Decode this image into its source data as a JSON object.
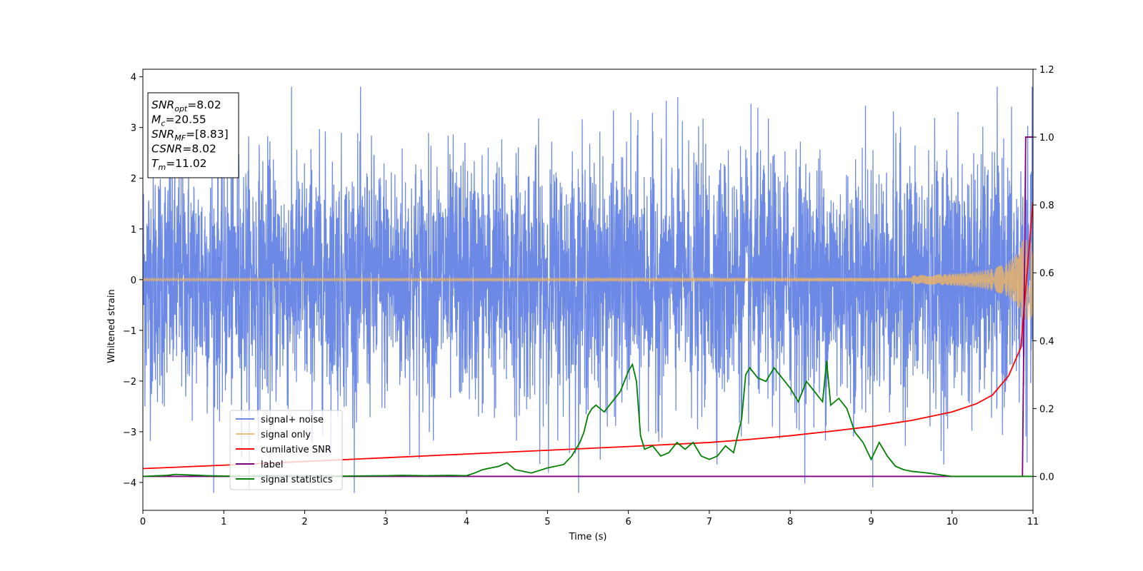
{
  "chart_data": {
    "type": "line",
    "xlabel": "Time (s)",
    "ylabel": "Whitened strain",
    "xlim": [
      0,
      11
    ],
    "ylim_left": [
      -4.55,
      4.15
    ],
    "ylim_right": [
      -0.1,
      1.2
    ],
    "x_ticks": [
      "0",
      "1",
      "2",
      "3",
      "4",
      "5",
      "6",
      "7",
      "8",
      "9",
      "10",
      "11"
    ],
    "y_ticks_left": [
      "−4",
      "−3",
      "−2",
      "−1",
      "0",
      "1",
      "2",
      "3",
      "4"
    ],
    "y_ticks_right": [
      "0.0",
      "0.2",
      "0.4",
      "0.6",
      "0.8",
      "1.0",
      "1.2"
    ],
    "series": [
      {
        "name": "signal+ noise",
        "axis": "left",
        "color": "#6d89e6",
        "description": "whitened strain noise, approx ±2.2 typical, peaks to ±3.8",
        "amplitude_typical": 2.2
      },
      {
        "name": "signal only",
        "axis": "left",
        "color": "#e8b36a",
        "description": "chirp waveform near 0, growing amplitude towards merger",
        "amplitude_end": 0.8
      },
      {
        "name": "cumilative SNR",
        "axis": "right",
        "color": "#ff0000",
        "x": [
          0,
          1,
          2,
          3,
          4,
          5,
          6,
          7,
          7.5,
          8,
          8.5,
          9,
          9.5,
          10,
          10.3,
          10.5,
          10.7,
          10.85,
          11
        ],
        "values": [
          0.023,
          0.033,
          0.044,
          0.055,
          0.066,
          0.077,
          0.088,
          0.1,
          0.109,
          0.12,
          0.133,
          0.147,
          0.165,
          0.19,
          0.214,
          0.24,
          0.297,
          0.38,
          0.81
        ]
      },
      {
        "name": "label",
        "axis": "right",
        "color": "#800080",
        "x": [
          0,
          10.87,
          10.91,
          11
        ],
        "values": [
          0.0,
          0.0,
          1.0,
          1.0
        ]
      },
      {
        "name": "signal statistics",
        "axis": "right",
        "color": "#008000",
        "x": [
          0,
          0.3,
          0.4,
          0.6,
          0.8,
          1.0,
          1.5,
          2.0,
          2.5,
          3.0,
          3.2,
          3.5,
          3.8,
          4.0,
          4.1,
          4.2,
          4.3,
          4.4,
          4.5,
          4.6,
          4.8,
          5.0,
          5.2,
          5.3,
          5.4,
          5.45,
          5.5,
          5.55,
          5.6,
          5.7,
          5.8,
          5.9,
          6.0,
          6.05,
          6.1,
          6.15,
          6.2,
          6.3,
          6.4,
          6.5,
          6.6,
          6.7,
          6.8,
          6.9,
          7.0,
          7.1,
          7.2,
          7.3,
          7.4,
          7.45,
          7.5,
          7.6,
          7.7,
          7.8,
          7.9,
          8.0,
          8.1,
          8.2,
          8.3,
          8.4,
          8.45,
          8.5,
          8.6,
          8.7,
          8.8,
          8.9,
          9.0,
          9.1,
          9.2,
          9.3,
          9.4,
          9.5,
          9.7,
          10.0,
          10.5,
          11.0
        ],
        "values": [
          0.0,
          0.003,
          0.006,
          0.004,
          0.002,
          0.001,
          0.001,
          0.001,
          0.001,
          0.002,
          0.003,
          0.002,
          0.003,
          0.002,
          0.01,
          0.02,
          0.025,
          0.03,
          0.04,
          0.02,
          0.01,
          0.025,
          0.035,
          0.06,
          0.1,
          0.13,
          0.18,
          0.2,
          0.21,
          0.19,
          0.22,
          0.25,
          0.31,
          0.33,
          0.28,
          0.12,
          0.08,
          0.09,
          0.06,
          0.07,
          0.1,
          0.08,
          0.1,
          0.06,
          0.05,
          0.06,
          0.09,
          0.07,
          0.17,
          0.3,
          0.32,
          0.29,
          0.28,
          0.32,
          0.29,
          0.26,
          0.22,
          0.28,
          0.25,
          0.22,
          0.34,
          0.21,
          0.23,
          0.2,
          0.13,
          0.1,
          0.05,
          0.1,
          0.06,
          0.03,
          0.02,
          0.015,
          0.01,
          0.0,
          0.0,
          0.0
        ]
      }
    ],
    "legend": {
      "placement": "lower-left",
      "entries": [
        "signal+ noise",
        "signal only",
        "cumilative SNR",
        "label",
        "signal statistics"
      ]
    },
    "annotation_box": {
      "placement": "top-left",
      "lines": [
        {
          "symbol": "SNR",
          "sub": "opt",
          "text": "=8.02"
        },
        {
          "symbol": "M",
          "sub": "c",
          "text": "=20.55"
        },
        {
          "symbol": "SNR",
          "sub": "MF",
          "text": "=[8.83]"
        },
        {
          "symbol": "CSNR",
          "sub": "",
          "text": "=8.02"
        },
        {
          "symbol": "T",
          "sub": "m",
          "text": "=11.02"
        }
      ]
    }
  }
}
